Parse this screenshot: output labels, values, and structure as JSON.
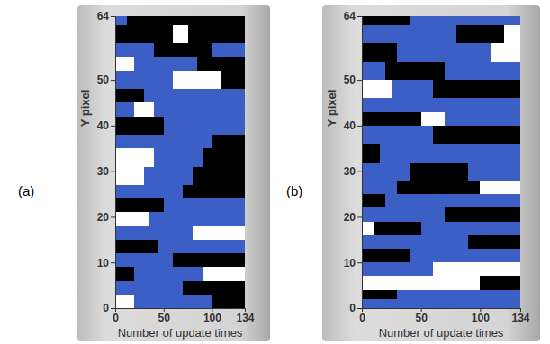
{
  "chart_data": [
    {
      "type": "heatmap",
      "panel_label": "(a)",
      "x_label": "Number of update times",
      "y_label": "Y pixel",
      "xlim": [
        0,
        134
      ],
      "ylim": [
        0,
        64
      ],
      "xticks": [
        0,
        50,
        100,
        134
      ],
      "yticks": [
        0,
        10,
        20,
        30,
        40,
        50,
        64
      ],
      "bands": [
        {
          "y": [
            62,
            64
          ],
          "segments": [
            [
              0,
              12,
              1
            ],
            [
              12,
              134,
              0
            ]
          ]
        },
        {
          "y": [
            58,
            62
          ],
          "segments": [
            [
              0,
              60,
              0
            ],
            [
              60,
              75,
              2
            ],
            [
              75,
              134,
              0
            ]
          ]
        },
        {
          "y": [
            55,
            58
          ],
          "segments": [
            [
              0,
              40,
              1
            ],
            [
              40,
              100,
              0
            ],
            [
              100,
              134,
              1
            ]
          ]
        },
        {
          "y": [
            52,
            55
          ],
          "segments": [
            [
              0,
              20,
              2
            ],
            [
              20,
              85,
              1
            ],
            [
              85,
              134,
              0
            ]
          ]
        },
        {
          "y": [
            48,
            52
          ],
          "segments": [
            [
              0,
              60,
              1
            ],
            [
              60,
              110,
              2
            ],
            [
              110,
              134,
              0
            ]
          ]
        },
        {
          "y": [
            45,
            48
          ],
          "segments": [
            [
              0,
              30,
              0
            ],
            [
              30,
              134,
              1
            ]
          ]
        },
        {
          "y": [
            42,
            45
          ],
          "segments": [
            [
              0,
              20,
              1
            ],
            [
              20,
              40,
              2
            ],
            [
              40,
              134,
              1
            ]
          ]
        },
        {
          "y": [
            38,
            42
          ],
          "segments": [
            [
              0,
              50,
              0
            ],
            [
              50,
              134,
              1
            ]
          ]
        },
        {
          "y": [
            35,
            38
          ],
          "segments": [
            [
              0,
              100,
              1
            ],
            [
              100,
              134,
              0
            ]
          ]
        },
        {
          "y": [
            31,
            35
          ],
          "segments": [
            [
              0,
              40,
              2
            ],
            [
              40,
              90,
              1
            ],
            [
              90,
              134,
              0
            ]
          ]
        },
        {
          "y": [
            27,
            31
          ],
          "segments": [
            [
              0,
              30,
              2
            ],
            [
              30,
              80,
              1
            ],
            [
              80,
              134,
              0
            ]
          ]
        },
        {
          "y": [
            24,
            27
          ],
          "segments": [
            [
              0,
              70,
              1
            ],
            [
              70,
              134,
              0
            ]
          ]
        },
        {
          "y": [
            21,
            24
          ],
          "segments": [
            [
              0,
              50,
              0
            ],
            [
              50,
              134,
              1
            ]
          ]
        },
        {
          "y": [
            18,
            21
          ],
          "segments": [
            [
              0,
              35,
              2
            ],
            [
              35,
              134,
              1
            ]
          ]
        },
        {
          "y": [
            15,
            18
          ],
          "segments": [
            [
              0,
              80,
              1
            ],
            [
              80,
              134,
              2
            ]
          ]
        },
        {
          "y": [
            12,
            15
          ],
          "segments": [
            [
              0,
              45,
              0
            ],
            [
              45,
              134,
              1
            ]
          ]
        },
        {
          "y": [
            9,
            12
          ],
          "segments": [
            [
              0,
              60,
              1
            ],
            [
              60,
              134,
              0
            ]
          ]
        },
        {
          "y": [
            6,
            9
          ],
          "segments": [
            [
              0,
              20,
              0
            ],
            [
              20,
              90,
              1
            ],
            [
              90,
              134,
              2
            ]
          ]
        },
        {
          "y": [
            3,
            6
          ],
          "segments": [
            [
              0,
              70,
              1
            ],
            [
              70,
              134,
              0
            ]
          ]
        },
        {
          "y": [
            0,
            3
          ],
          "segments": [
            [
              0,
              20,
              2
            ],
            [
              20,
              100,
              1
            ],
            [
              100,
              134,
              0
            ]
          ]
        }
      ]
    },
    {
      "type": "heatmap",
      "panel_label": "(b)",
      "x_label": "Number of update times",
      "y_label": "Y pixel",
      "xlim": [
        0,
        134
      ],
      "ylim": [
        0,
        64
      ],
      "xticks": [
        0,
        50,
        100,
        134
      ],
      "yticks": [
        0,
        10,
        20,
        30,
        40,
        50,
        64
      ],
      "bands": [
        {
          "y": [
            62,
            64
          ],
          "segments": [
            [
              0,
              40,
              0
            ],
            [
              40,
              134,
              1
            ]
          ]
        },
        {
          "y": [
            58,
            62
          ],
          "segments": [
            [
              0,
              80,
              1
            ],
            [
              80,
              120,
              0
            ],
            [
              120,
              134,
              2
            ]
          ]
        },
        {
          "y": [
            54,
            58
          ],
          "segments": [
            [
              0,
              30,
              0
            ],
            [
              30,
              110,
              1
            ],
            [
              110,
              134,
              2
            ]
          ]
        },
        {
          "y": [
            50,
            54
          ],
          "segments": [
            [
              0,
              20,
              1
            ],
            [
              20,
              70,
              0
            ],
            [
              70,
              134,
              1
            ]
          ]
        },
        {
          "y": [
            46,
            50
          ],
          "segments": [
            [
              0,
              25,
              2
            ],
            [
              25,
              60,
              1
            ],
            [
              60,
              134,
              0
            ]
          ]
        },
        {
          "y": [
            43,
            46
          ],
          "segments": [
            [
              0,
              134,
              1
            ]
          ]
        },
        {
          "y": [
            40,
            43
          ],
          "segments": [
            [
              0,
              50,
              0
            ],
            [
              50,
              70,
              2
            ],
            [
              70,
              134,
              1
            ]
          ]
        },
        {
          "y": [
            36,
            40
          ],
          "segments": [
            [
              0,
              60,
              1
            ],
            [
              60,
              134,
              0
            ]
          ]
        },
        {
          "y": [
            32,
            36
          ],
          "segments": [
            [
              0,
              15,
              0
            ],
            [
              15,
              134,
              1
            ]
          ]
        },
        {
          "y": [
            28,
            32
          ],
          "segments": [
            [
              0,
              40,
              1
            ],
            [
              40,
              90,
              0
            ],
            [
              90,
              134,
              1
            ]
          ]
        },
        {
          "y": [
            25,
            28
          ],
          "segments": [
            [
              0,
              30,
              1
            ],
            [
              30,
              100,
              0
            ],
            [
              100,
              134,
              2
            ]
          ]
        },
        {
          "y": [
            22,
            25
          ],
          "segments": [
            [
              0,
              20,
              0
            ],
            [
              20,
              134,
              1
            ]
          ]
        },
        {
          "y": [
            19,
            22
          ],
          "segments": [
            [
              0,
              70,
              1
            ],
            [
              70,
              134,
              0
            ]
          ]
        },
        {
          "y": [
            16,
            19
          ],
          "segments": [
            [
              0,
              10,
              2
            ],
            [
              10,
              50,
              0
            ],
            [
              50,
              134,
              1
            ]
          ]
        },
        {
          "y": [
            13,
            16
          ],
          "segments": [
            [
              0,
              90,
              1
            ],
            [
              90,
              134,
              0
            ]
          ]
        },
        {
          "y": [
            10,
            13
          ],
          "segments": [
            [
              0,
              40,
              0
            ],
            [
              40,
              134,
              1
            ]
          ]
        },
        {
          "y": [
            7,
            10
          ],
          "segments": [
            [
              0,
              60,
              1
            ],
            [
              60,
              134,
              2
            ]
          ]
        },
        {
          "y": [
            4,
            7
          ],
          "segments": [
            [
              0,
              100,
              2
            ],
            [
              100,
              134,
              0
            ]
          ]
        },
        {
          "y": [
            2,
            4
          ],
          "segments": [
            [
              0,
              30,
              0
            ],
            [
              30,
              134,
              1
            ]
          ]
        },
        {
          "y": [
            0,
            2
          ],
          "segments": [
            [
              0,
              134,
              1
            ]
          ]
        }
      ]
    }
  ]
}
